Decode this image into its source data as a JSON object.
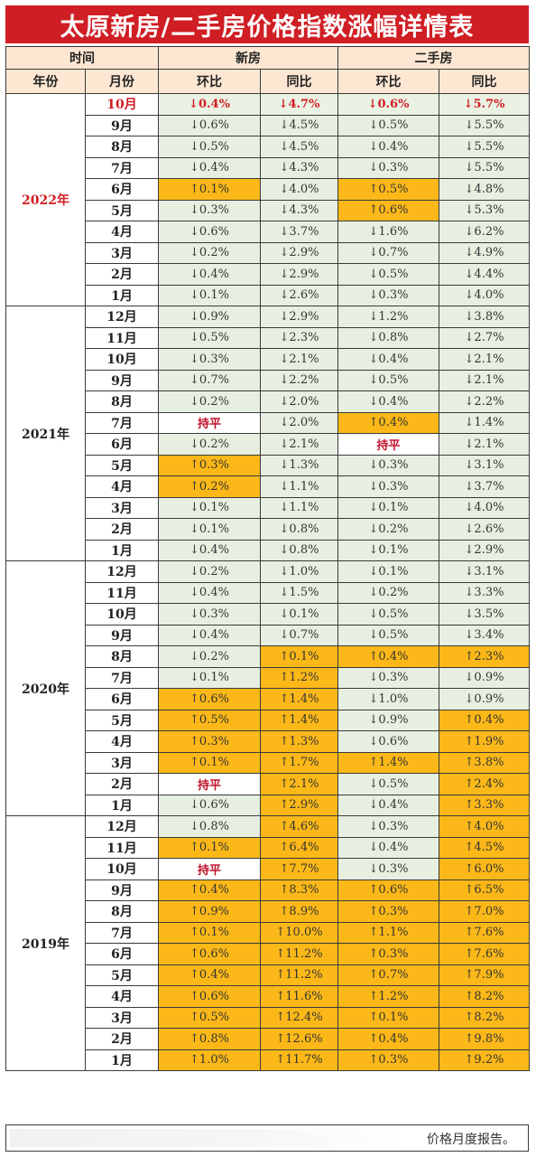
{
  "title": "太原新房/二手房价格指数涨幅详情表",
  "header": {
    "time": "时间",
    "new_house": "新房",
    "second_hand": "二手房",
    "year": "年份",
    "month": "月份",
    "mom": "环比",
    "yoy": "同比"
  },
  "groups": [
    {
      "year": "2022年",
      "rows": [
        {
          "m": "10月",
          "v": [
            [
              "↓0.4%",
              "hl"
            ],
            [
              "↓4.7%",
              "hl"
            ],
            [
              "↓0.6%",
              "hl"
            ],
            [
              "↓5.7%",
              "hl"
            ]
          ]
        },
        {
          "m": "9月",
          "v": [
            [
              "↓0.6%",
              "d"
            ],
            [
              "↓4.5%",
              "d"
            ],
            [
              "↓0.5%",
              "d"
            ],
            [
              "↓5.5%",
              "d"
            ]
          ]
        },
        {
          "m": "8月",
          "v": [
            [
              "↓0.5%",
              "d"
            ],
            [
              "↓4.5%",
              "d"
            ],
            [
              "↓0.4%",
              "d"
            ],
            [
              "↓5.5%",
              "d"
            ]
          ]
        },
        {
          "m": "7月",
          "v": [
            [
              "↓0.4%",
              "d"
            ],
            [
              "↓4.3%",
              "d"
            ],
            [
              "↓0.3%",
              "d"
            ],
            [
              "↓5.5%",
              "d"
            ]
          ]
        },
        {
          "m": "6月",
          "v": [
            [
              "↑0.1%",
              "u"
            ],
            [
              "↓4.0%",
              "d"
            ],
            [
              "↑0.5%",
              "u"
            ],
            [
              "↓4.8%",
              "d"
            ]
          ]
        },
        {
          "m": "5月",
          "v": [
            [
              "↓0.3%",
              "d"
            ],
            [
              "↓4.3%",
              "d"
            ],
            [
              "↑0.6%",
              "u"
            ],
            [
              "↓5.3%",
              "d"
            ]
          ]
        },
        {
          "m": "4月",
          "v": [
            [
              "↓0.6%",
              "d"
            ],
            [
              "↓3.7%",
              "d"
            ],
            [
              "↓1.6%",
              "d"
            ],
            [
              "↓6.2%",
              "d"
            ]
          ]
        },
        {
          "m": "3月",
          "v": [
            [
              "↓0.2%",
              "d"
            ],
            [
              "↓2.9%",
              "d"
            ],
            [
              "↓0.7%",
              "d"
            ],
            [
              "↓4.9%",
              "d"
            ]
          ]
        },
        {
          "m": "2月",
          "v": [
            [
              "↓0.4%",
              "d"
            ],
            [
              "↓2.9%",
              "d"
            ],
            [
              "↓0.5%",
              "d"
            ],
            [
              "↓4.4%",
              "d"
            ]
          ]
        },
        {
          "m": "1月",
          "v": [
            [
              "↓0.1%",
              "d"
            ],
            [
              "↓2.6%",
              "d"
            ],
            [
              "↓0.3%",
              "d"
            ],
            [
              "↓4.0%",
              "d"
            ]
          ]
        }
      ]
    },
    {
      "year": "2021年",
      "rows": [
        {
          "m": "12月",
          "v": [
            [
              "↓0.9%",
              "d"
            ],
            [
              "↓2.9%",
              "d"
            ],
            [
              "↓1.2%",
              "d"
            ],
            [
              "↓3.8%",
              "d"
            ]
          ]
        },
        {
          "m": "11月",
          "v": [
            [
              "↓0.5%",
              "d"
            ],
            [
              "↓2.3%",
              "d"
            ],
            [
              "↓0.8%",
              "d"
            ],
            [
              "↓2.7%",
              "d"
            ]
          ]
        },
        {
          "m": "10月",
          "v": [
            [
              "↓0.3%",
              "d"
            ],
            [
              "↓2.1%",
              "d"
            ],
            [
              "↓0.4%",
              "d"
            ],
            [
              "↓2.1%",
              "d"
            ]
          ]
        },
        {
          "m": "9月",
          "v": [
            [
              "↓0.7%",
              "d"
            ],
            [
              "↓2.2%",
              "d"
            ],
            [
              "↓0.5%",
              "d"
            ],
            [
              "↓2.1%",
              "d"
            ]
          ]
        },
        {
          "m": "8月",
          "v": [
            [
              "↓0.2%",
              "d"
            ],
            [
              "↓2.0%",
              "d"
            ],
            [
              "↓0.4%",
              "d"
            ],
            [
              "↓2.2%",
              "d"
            ]
          ]
        },
        {
          "m": "7月",
          "v": [
            [
              "持平",
              "f"
            ],
            [
              "↓2.0%",
              "d"
            ],
            [
              "↑0.4%",
              "u"
            ],
            [
              "↓1.4%",
              "d"
            ]
          ]
        },
        {
          "m": "6月",
          "v": [
            [
              "↓0.2%",
              "d"
            ],
            [
              "↓2.1%",
              "d"
            ],
            [
              "持平",
              "f"
            ],
            [
              "↓2.1%",
              "d"
            ]
          ]
        },
        {
          "m": "5月",
          "v": [
            [
              "↑0.3%",
              "u"
            ],
            [
              "↓1.3%",
              "d"
            ],
            [
              "↓0.3%",
              "d"
            ],
            [
              "↓3.1%",
              "d"
            ]
          ]
        },
        {
          "m": "4月",
          "v": [
            [
              "↑0.2%",
              "u"
            ],
            [
              "↓1.1%",
              "d"
            ],
            [
              "↓0.3%",
              "d"
            ],
            [
              "↓3.7%",
              "d"
            ]
          ]
        },
        {
          "m": "3月",
          "v": [
            [
              "↓0.1%",
              "d"
            ],
            [
              "↓1.1%",
              "d"
            ],
            [
              "↓0.1%",
              "d"
            ],
            [
              "↓4.0%",
              "d"
            ]
          ]
        },
        {
          "m": "2月",
          "v": [
            [
              "↓0.1%",
              "d"
            ],
            [
              "↓0.8%",
              "d"
            ],
            [
              "↓0.2%",
              "d"
            ],
            [
              "↓2.6%",
              "d"
            ]
          ]
        },
        {
          "m": "1月",
          "v": [
            [
              "↓0.4%",
              "d"
            ],
            [
              "↓0.8%",
              "d"
            ],
            [
              "↓0.1%",
              "d"
            ],
            [
              "↓2.9%",
              "d"
            ]
          ]
        }
      ]
    },
    {
      "year": "2020年",
      "rows": [
        {
          "m": "12月",
          "v": [
            [
              "↓0.2%",
              "d"
            ],
            [
              "↓1.0%",
              "d"
            ],
            [
              "↓0.1%",
              "d"
            ],
            [
              "↓3.1%",
              "d"
            ]
          ]
        },
        {
          "m": "11月",
          "v": [
            [
              "↓0.4%",
              "d"
            ],
            [
              "↓1.5%",
              "d"
            ],
            [
              "↓0.2%",
              "d"
            ],
            [
              "↓3.3%",
              "d"
            ]
          ]
        },
        {
          "m": "10月",
          "v": [
            [
              "↓0.3%",
              "d"
            ],
            [
              "↓0.1%",
              "d"
            ],
            [
              "↓0.5%",
              "d"
            ],
            [
              "↓3.5%",
              "d"
            ]
          ]
        },
        {
          "m": "9月",
          "v": [
            [
              "↓0.4%",
              "d"
            ],
            [
              "↓0.7%",
              "d"
            ],
            [
              "↓0.5%",
              "d"
            ],
            [
              "↓3.4%",
              "d"
            ]
          ]
        },
        {
          "m": "8月",
          "v": [
            [
              "↓0.2%",
              "d"
            ],
            [
              "↑0.1%",
              "u"
            ],
            [
              "↑0.4%",
              "u"
            ],
            [
              "↑2.3%",
              "u"
            ]
          ]
        },
        {
          "m": "7月",
          "v": [
            [
              "↓0.1%",
              "d"
            ],
            [
              "↑1.2%",
              "u"
            ],
            [
              "↓0.3%",
              "d"
            ],
            [
              "↓0.9%",
              "d"
            ]
          ]
        },
        {
          "m": "6月",
          "v": [
            [
              "↑0.6%",
              "u"
            ],
            [
              "↑1.4%",
              "u"
            ],
            [
              "↓1.0%",
              "d"
            ],
            [
              "↓0.9%",
              "d"
            ]
          ]
        },
        {
          "m": "5月",
          "v": [
            [
              "↑0.5%",
              "u"
            ],
            [
              "↑1.4%",
              "u"
            ],
            [
              "↓0.9%",
              "d"
            ],
            [
              "↑0.4%",
              "u"
            ]
          ]
        },
        {
          "m": "4月",
          "v": [
            [
              "↑0.3%",
              "u"
            ],
            [
              "↑1.3%",
              "u"
            ],
            [
              "↓0.6%",
              "d"
            ],
            [
              "↑1.9%",
              "u"
            ]
          ]
        },
        {
          "m": "3月",
          "v": [
            [
              "↑0.1%",
              "u"
            ],
            [
              "↑1.7%",
              "u"
            ],
            [
              "↑1.4%",
              "u"
            ],
            [
              "↑3.8%",
              "u"
            ]
          ]
        },
        {
          "m": "2月",
          "v": [
            [
              "持平",
              "f"
            ],
            [
              "↑2.1%",
              "u"
            ],
            [
              "↓0.5%",
              "d"
            ],
            [
              "↑2.4%",
              "u"
            ]
          ]
        },
        {
          "m": "1月",
          "v": [
            [
              "↓0.6%",
              "d"
            ],
            [
              "↑2.9%",
              "u"
            ],
            [
              "↓0.4%",
              "d"
            ],
            [
              "↑3.3%",
              "u"
            ]
          ]
        }
      ]
    },
    {
      "year": "2019年",
      "rows": [
        {
          "m": "12月",
          "v": [
            [
              "↓0.8%",
              "d"
            ],
            [
              "↑4.6%",
              "u"
            ],
            [
              "↓0.3%",
              "d"
            ],
            [
              "↑4.0%",
              "u"
            ]
          ]
        },
        {
          "m": "11月",
          "v": [
            [
              "↑0.1%",
              "u"
            ],
            [
              "↑6.4%",
              "u"
            ],
            [
              "↓0.4%",
              "d"
            ],
            [
              "↑4.5%",
              "u"
            ]
          ]
        },
        {
          "m": "10月",
          "v": [
            [
              "持平",
              "f"
            ],
            [
              "↑7.7%",
              "u"
            ],
            [
              "↓0.3%",
              "d"
            ],
            [
              "↑6.0%",
              "u"
            ]
          ]
        },
        {
          "m": "9月",
          "v": [
            [
              "↑0.4%",
              "u"
            ],
            [
              "↑8.3%",
              "u"
            ],
            [
              "↑0.6%",
              "u"
            ],
            [
              "↑6.5%",
              "u"
            ]
          ]
        },
        {
          "m": "8月",
          "v": [
            [
              "↑0.9%",
              "u"
            ],
            [
              "↑8.9%",
              "u"
            ],
            [
              "↑0.3%",
              "u"
            ],
            [
              "↑7.0%",
              "u"
            ]
          ]
        },
        {
          "m": "7月",
          "v": [
            [
              "↑0.1%",
              "u"
            ],
            [
              "↑10.0%",
              "u"
            ],
            [
              "↑1.1%",
              "u"
            ],
            [
              "↑7.6%",
              "u"
            ]
          ]
        },
        {
          "m": "6月",
          "v": [
            [
              "↑0.6%",
              "u"
            ],
            [
              "↑11.2%",
              "u"
            ],
            [
              "↑0.3%",
              "u"
            ],
            [
              "↑7.6%",
              "u"
            ]
          ]
        },
        {
          "m": "5月",
          "v": [
            [
              "↑0.4%",
              "u"
            ],
            [
              "↑11.2%",
              "u"
            ],
            [
              "↑0.7%",
              "u"
            ],
            [
              "↑7.9%",
              "u"
            ]
          ]
        },
        {
          "m": "4月",
          "v": [
            [
              "↑0.6%",
              "u"
            ],
            [
              "↑11.6%",
              "u"
            ],
            [
              "↑1.2%",
              "u"
            ],
            [
              "↑8.2%",
              "u"
            ]
          ]
        },
        {
          "m": "3月",
          "v": [
            [
              "↑0.5%",
              "u"
            ],
            [
              "↑12.4%",
              "u"
            ],
            [
              "↑0.1%",
              "u"
            ],
            [
              "↑8.2%",
              "u"
            ]
          ]
        },
        {
          "m": "2月",
          "v": [
            [
              "↑0.8%",
              "u"
            ],
            [
              "↑12.6%",
              "u"
            ],
            [
              "↑0.4%",
              "u"
            ],
            [
              "↑9.8%",
              "u"
            ]
          ]
        },
        {
          "m": "1月",
          "v": [
            [
              "↑1.0%",
              "u"
            ],
            [
              "↑11.7%",
              "u"
            ],
            [
              "↑0.3%",
              "u"
            ],
            [
              "↑9.2%",
              "u"
            ]
          ]
        }
      ]
    }
  ],
  "footer_text": "价格月度报告。",
  "colors": {
    "title_bg": "#cf1e24",
    "header_bg": "#fde7d3",
    "rise_bg": "#fbb818",
    "fall_bg": "#e7efe1",
    "highlight_text": "#d01c22"
  }
}
